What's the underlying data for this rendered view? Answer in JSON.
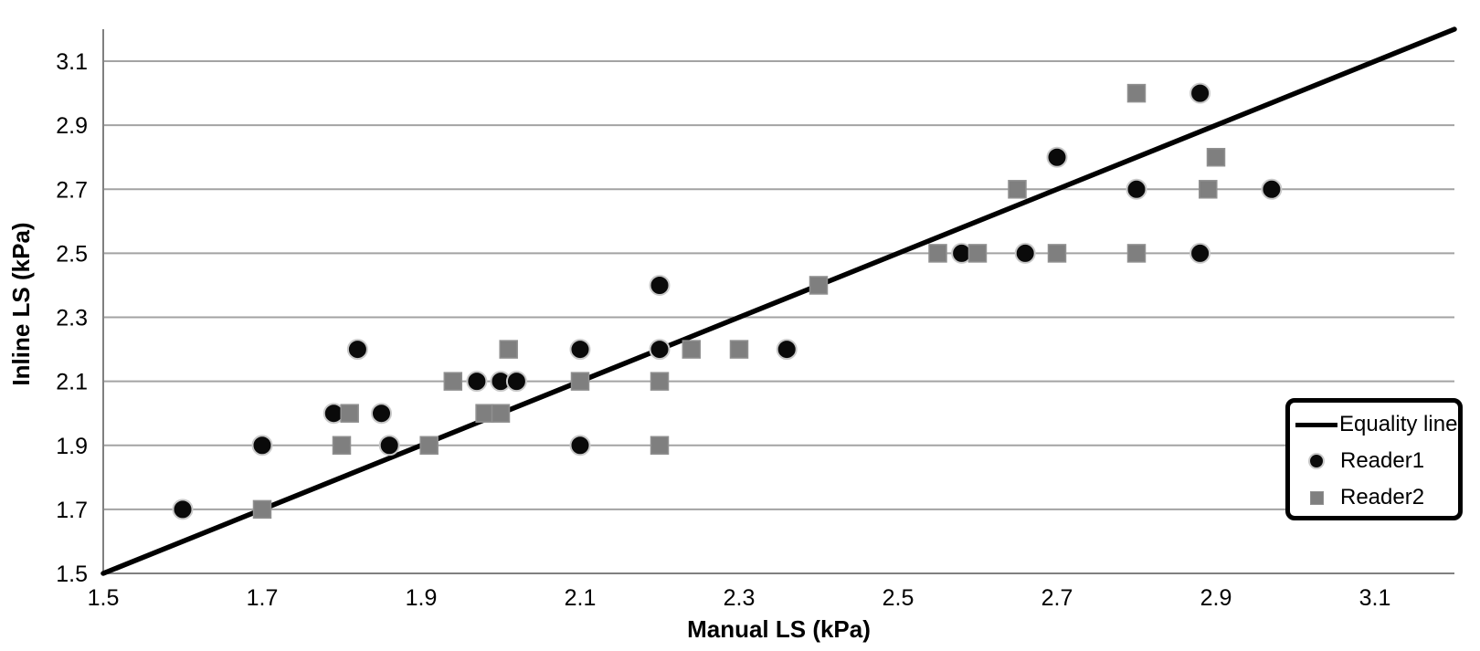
{
  "chart_data": {
    "type": "scatter",
    "title": "",
    "xlabel": "Manual LS (kPa)",
    "ylabel": "Inline LS (kPa)",
    "xlim": [
      1.5,
      3.2
    ],
    "ylim": [
      1.5,
      3.2
    ],
    "x_ticks": [
      1.5,
      1.7,
      1.9,
      2.1,
      2.3,
      2.5,
      2.7,
      2.9,
      3.1
    ],
    "y_ticks": [
      1.5,
      1.7,
      1.9,
      2.1,
      2.3,
      2.5,
      2.7,
      2.9,
      3.1
    ],
    "grid": true,
    "legend_position": "inside-right",
    "equality_line": {
      "label": "Equality line",
      "from": [
        1.5,
        1.5
      ],
      "to": [
        3.2,
        3.2
      ]
    },
    "series": [
      {
        "name": "Reader1",
        "marker": "circle",
        "points": [
          [
            1.6,
            1.7
          ],
          [
            1.7,
            1.9
          ],
          [
            1.79,
            2.0
          ],
          [
            1.82,
            2.2
          ],
          [
            1.85,
            2.0
          ],
          [
            1.86,
            1.9
          ],
          [
            1.97,
            2.1
          ],
          [
            2.0,
            2.1
          ],
          [
            2.02,
            2.1
          ],
          [
            2.1,
            1.9
          ],
          [
            2.1,
            2.2
          ],
          [
            2.2,
            2.2
          ],
          [
            2.2,
            2.4
          ],
          [
            2.36,
            2.2
          ],
          [
            2.58,
            2.5
          ],
          [
            2.66,
            2.5
          ],
          [
            2.7,
            2.8
          ],
          [
            2.8,
            2.7
          ],
          [
            2.88,
            2.5
          ],
          [
            2.88,
            3.0
          ],
          [
            2.97,
            2.7
          ]
        ]
      },
      {
        "name": "Reader2",
        "marker": "square",
        "points": [
          [
            1.7,
            1.7
          ],
          [
            1.8,
            1.9
          ],
          [
            1.81,
            2.0
          ],
          [
            1.91,
            1.9
          ],
          [
            1.94,
            2.1
          ],
          [
            1.98,
            2.0
          ],
          [
            2.0,
            2.0
          ],
          [
            2.01,
            2.2
          ],
          [
            2.1,
            2.1
          ],
          [
            2.2,
            1.9
          ],
          [
            2.2,
            2.1
          ],
          [
            2.24,
            2.2
          ],
          [
            2.3,
            2.2
          ],
          [
            2.4,
            2.4
          ],
          [
            2.55,
            2.5
          ],
          [
            2.6,
            2.5
          ],
          [
            2.65,
            2.7
          ],
          [
            2.7,
            2.5
          ],
          [
            2.8,
            2.5
          ],
          [
            2.8,
            3.0
          ],
          [
            2.89,
            2.7
          ],
          [
            2.9,
            2.8
          ]
        ]
      }
    ]
  },
  "legend": {
    "items": [
      {
        "label": "Equality line",
        "swatch": "line"
      },
      {
        "label": "Reader1",
        "swatch": "circle"
      },
      {
        "label": "Reader2",
        "swatch": "square"
      }
    ]
  },
  "colors": {
    "background": "#ffffff",
    "equality_line": "#000000",
    "marker_reader1": "#0a0a0a",
    "marker_reader1_outline": "#c9c9c9",
    "marker_reader2": "#7f7f7f",
    "marker_reader2_outline": "#909090",
    "gridline": "#a3a3a3",
    "axis": "#808080",
    "text": "#000000",
    "legend_border": "#000000"
  }
}
